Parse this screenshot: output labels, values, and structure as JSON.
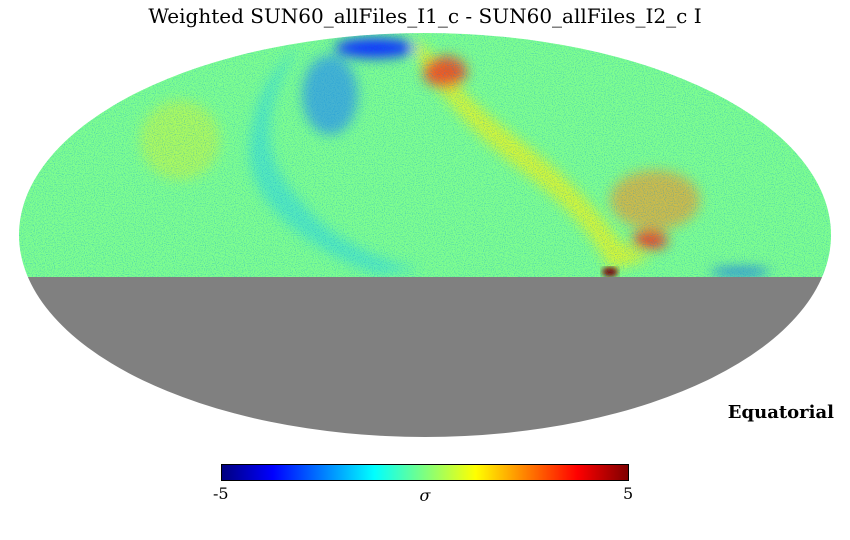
{
  "title": "Weighted SUN60_allFiles_I1_c - SUN60_allFiles_I2_c I",
  "coordinate_system": "Equatorial",
  "colorbar": {
    "min_label": "-5",
    "max_label": "5",
    "unit_label": "σ",
    "colormap": [
      "#00007f",
      "#0000ff",
      "#007fff",
      "#00ffff",
      "#7fff7f",
      "#ffff00",
      "#ff7f00",
      "#ff0000",
      "#7f0000"
    ]
  },
  "map": {
    "projection": "mollweide",
    "masked_region": "southern half (declination < 0)",
    "mask_color": "#808080",
    "background_color": "#7fff9f"
  }
}
